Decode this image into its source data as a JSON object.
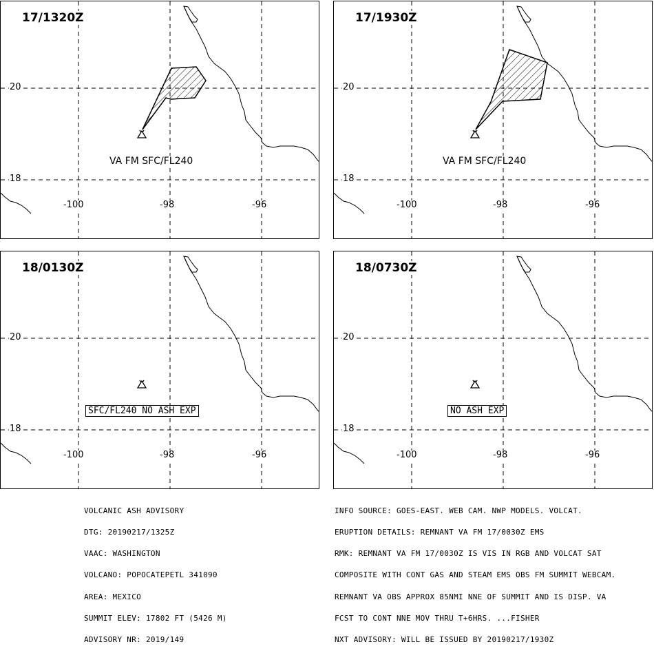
{
  "panels": [
    {
      "time": "17/1320Z",
      "ash_label": "VA FM SFC/FL240",
      "box_label": ""
    },
    {
      "time": "17/1930Z",
      "ash_label": "VA FM SFC/FL240",
      "box_label": ""
    },
    {
      "time": "18/0130Z",
      "ash_label": "",
      "box_label": "SFC/FL240 NO ASH EXP"
    },
    {
      "time": "18/0730Z",
      "ash_label": "",
      "box_label": "NO ASH EXP"
    }
  ],
  "grid_labels": {
    "lat": [
      "20",
      "18"
    ],
    "lon": [
      "-100",
      "-98",
      "-96"
    ]
  },
  "advisory_left": [
    "VOLCANIC ASH ADVISORY",
    "DTG: 20190217/1325Z",
    "VAAC: WASHINGTON",
    "VOLCANO: POPOCATEPETL 341090",
    "AREA: MEXICO",
    "SUMMIT ELEV: 17802 FT (5426 M)",
    "ADVISORY NR: 2019/149"
  ],
  "advisory_right": [
    "INFO SOURCE: GOES-EAST. WEB CAM. NWP MODELS. VOLCAT.",
    "ERUPTION DETAILS: REMNANT VA FM 17/0030Z EMS",
    "RMK: REMNANT VA FM 17/0030Z IS VIS IN RGB AND VOLCAT SAT",
    "COMPOSITE WITH CONT GAS AND STEAM EMS OBS FM SUMMIT WEBCAM.",
    "REMNANT VA OBS APPROX 85NMI NNE OF SUMMIT AND IS DISP. VA",
    "FCST TO CONT NNE MOV THRU T+6HRS. ...FISHER",
    "NXT ADVISORY: WILL BE ISSUED BY 20190217/1930Z"
  ],
  "icons": {
    "volcano": "volcano-icon"
  },
  "colors": {
    "line": "#000000",
    "background": "#ffffff"
  }
}
